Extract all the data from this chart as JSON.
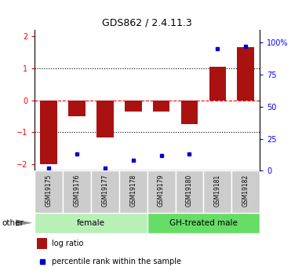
{
  "title": "GDS862 / 2.4.11.3",
  "samples": [
    "GSM19175",
    "GSM19176",
    "GSM19177",
    "GSM19178",
    "GSM19179",
    "GSM19180",
    "GSM19181",
    "GSM19182"
  ],
  "log_ratios": [
    -2.0,
    -0.5,
    -1.15,
    -0.35,
    -0.35,
    -0.75,
    1.05,
    1.65
  ],
  "percentile_ranks": [
    2,
    13,
    2,
    8,
    12,
    13,
    95,
    97
  ],
  "groups": [
    {
      "label": "female",
      "indices": [
        0,
        1,
        2,
        3
      ],
      "color": "#b8f0b8"
    },
    {
      "label": "GH-treated male",
      "indices": [
        4,
        5,
        6,
        7
      ],
      "color": "#66dd66"
    }
  ],
  "bar_color": "#aa1111",
  "dot_color": "#0000cc",
  "ylim": [
    -2.2,
    2.2
  ],
  "y2lim": [
    0,
    110
  ],
  "yticks_left": [
    -2,
    -1,
    0,
    1,
    2
  ],
  "yticks_right": [
    0,
    25,
    50,
    75,
    100
  ],
  "ytick_labels_right": [
    "0",
    "25",
    "50",
    "75",
    "100%"
  ],
  "hlines_dotted": [
    -1,
    1
  ],
  "hline_dashed": 0,
  "legend_bar_label": "log ratio",
  "legend_dot_label": "percentile rank within the sample",
  "other_label": "other",
  "bg_color": "#ffffff",
  "label_box_color": "#cccccc",
  "bar_width": 0.6
}
